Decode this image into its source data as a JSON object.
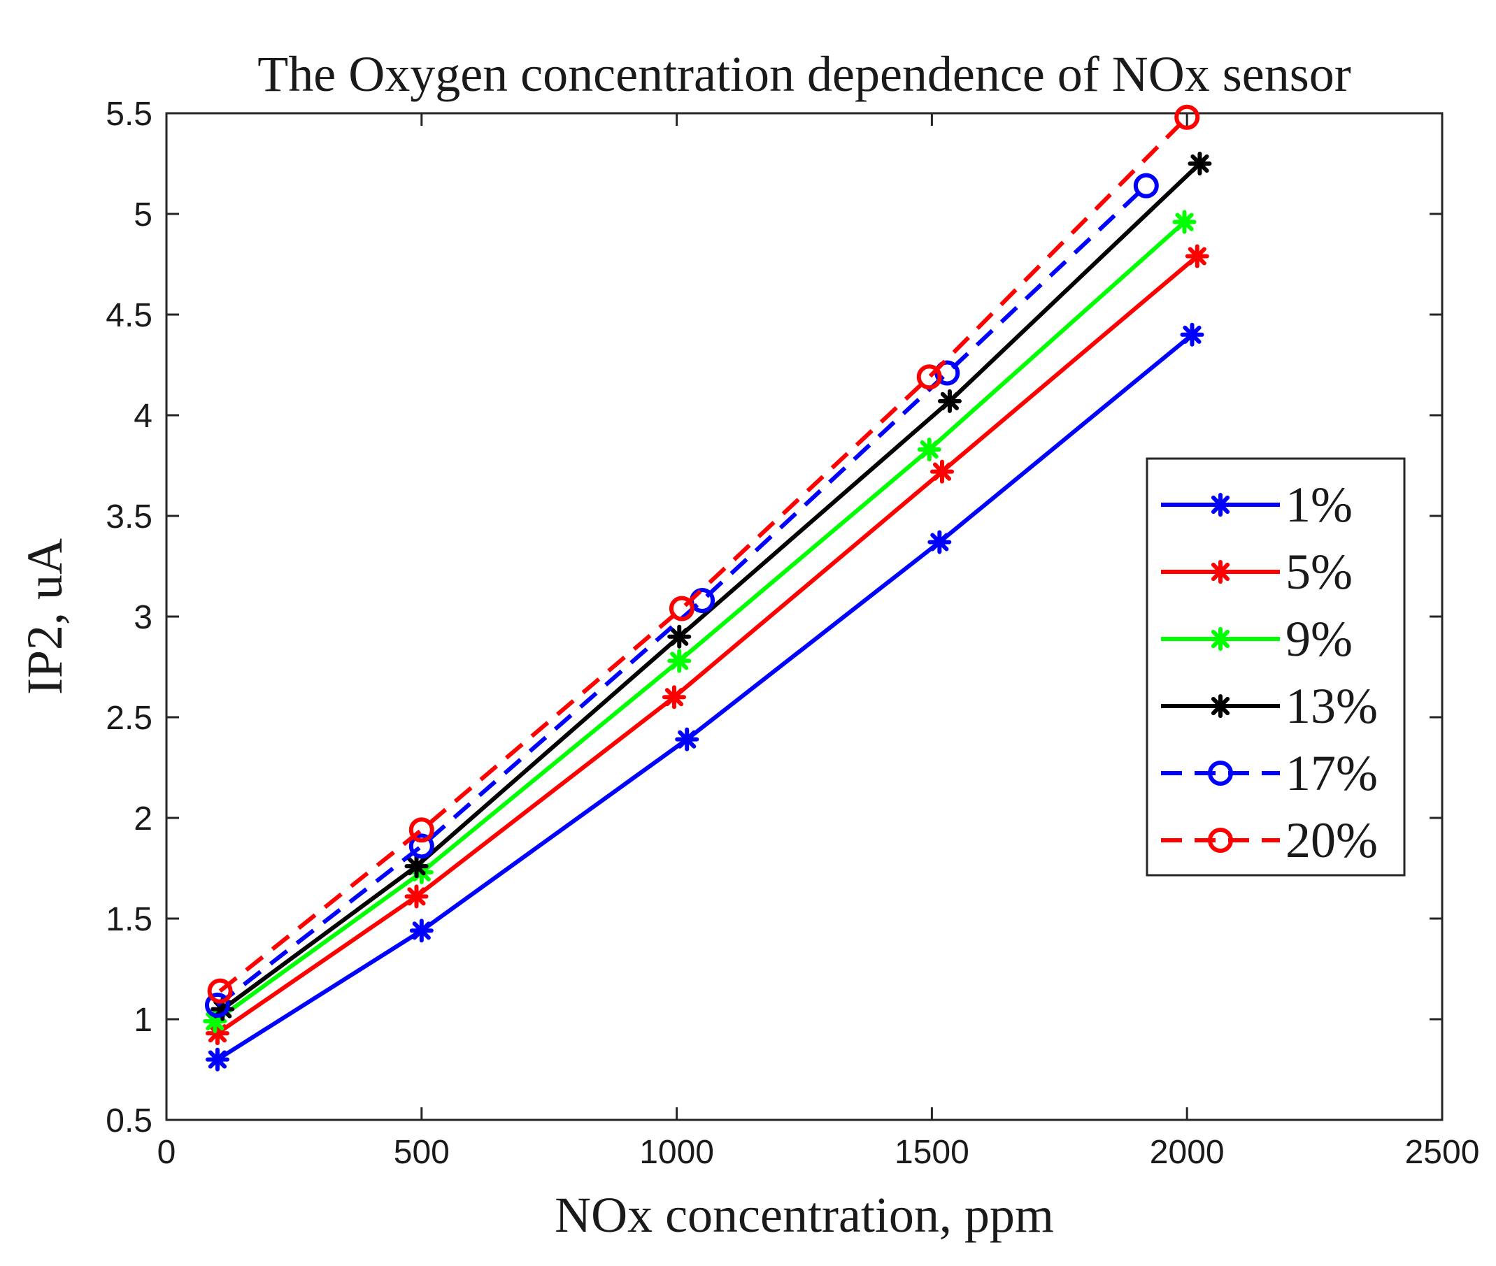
{
  "chart_data": {
    "type": "line",
    "title": "The Oxygen concentration dependence of NOx sensor",
    "xlabel": "NOx concentration, ppm",
    "ylabel": "IP2, uA",
    "xlim": [
      0,
      2500
    ],
    "ylim": [
      0.5,
      5.5
    ],
    "xticks": [
      0,
      500,
      1000,
      1500,
      2000,
      2500
    ],
    "yticks": [
      0.5,
      1,
      1.5,
      2,
      2.5,
      3,
      3.5,
      4,
      4.5,
      5,
      5.5
    ],
    "xtick_labels": [
      "0",
      "500",
      "1000",
      "1500",
      "2000",
      "2500"
    ],
    "ytick_labels": [
      "0.5",
      "1",
      "1.5",
      "2",
      "2.5",
      "3",
      "3.5",
      "4",
      "4.5",
      "5",
      "5.5"
    ],
    "grid": false,
    "legend_position": "right",
    "series": [
      {
        "name": "1%",
        "color": "#0000ff",
        "line": "solid",
        "marker": "asterisk",
        "x": [
          100,
          500,
          1020,
          1515,
          2010
        ],
        "y": [
          0.8,
          1.44,
          2.39,
          3.37,
          4.4
        ]
      },
      {
        "name": "5%",
        "color": "#ff0000",
        "line": "solid",
        "marker": "asterisk",
        "x": [
          100,
          490,
          995,
          1520,
          2020
        ],
        "y": [
          0.93,
          1.61,
          2.6,
          3.72,
          4.79
        ]
      },
      {
        "name": "9%",
        "color": "#00ff00",
        "line": "solid",
        "marker": "asterisk",
        "x": [
          95,
          500,
          1005,
          1495,
          1995
        ],
        "y": [
          0.99,
          1.73,
          2.78,
          3.83,
          4.96
        ]
      },
      {
        "name": "13%",
        "color": "#000000",
        "line": "solid",
        "marker": "asterisk",
        "x": [
          110,
          490,
          1005,
          1535,
          2025
        ],
        "y": [
          1.05,
          1.76,
          2.9,
          4.07,
          5.25
        ]
      },
      {
        "name": "17%",
        "color": "#0000ff",
        "line": "dashed",
        "marker": "circle",
        "x": [
          100,
          500,
          1050,
          1530,
          1920
        ],
        "y": [
          1.07,
          1.86,
          3.08,
          4.21,
          5.14
        ]
      },
      {
        "name": "20%",
        "color": "#ff0000",
        "line": "dashed",
        "marker": "circle",
        "x": [
          105,
          500,
          1010,
          1495,
          2000
        ],
        "y": [
          1.14,
          1.94,
          3.04,
          4.19,
          5.48
        ]
      }
    ]
  }
}
